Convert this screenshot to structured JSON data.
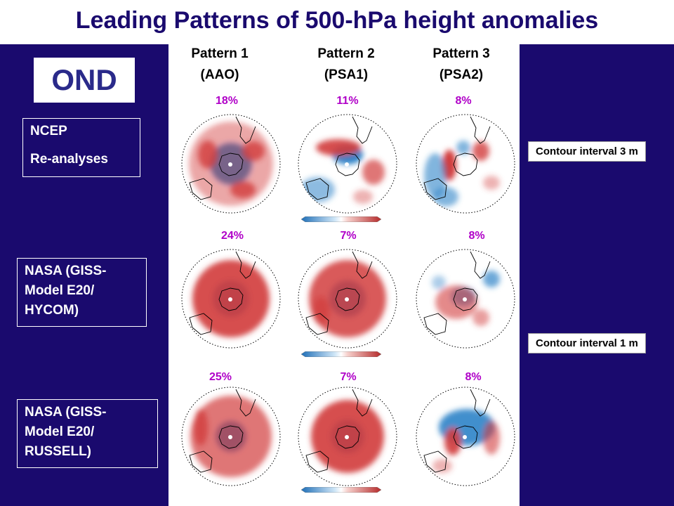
{
  "title": "Leading Patterns of 500-hPa height anomalies",
  "season": "OND",
  "columns": [
    {
      "line1": "Pattern 1",
      "line2": "(AAO)"
    },
    {
      "line1": "Pattern 2",
      "line2": "(PSA1)"
    },
    {
      "line1": "Pattern 3",
      "line2": "(PSA2)"
    }
  ],
  "rows": [
    {
      "label_lines": [
        "NCEP",
        "Re-analyses"
      ],
      "percents": [
        "18%",
        "11%",
        "8%"
      ]
    },
    {
      "label_lines": [
        "NASA (GISS-",
        "Model E20/",
        "HYCOM)"
      ],
      "percents": [
        "24%",
        "7%",
        "8%"
      ]
    },
    {
      "label_lines": [
        "NASA (GISS-",
        "Model E20/",
        "RUSSELL)"
      ],
      "percents": [
        "25%",
        "7%",
        "8%"
      ]
    }
  ],
  "contour_intervals": [
    "Contour interval 3 m",
    "Contour interval 1 m"
  ],
  "colors": {
    "background": "#1a0a6e",
    "title": "#1a0a6e",
    "percent": "#b000c8",
    "positive_anomaly": "#d23c3c",
    "negative_anomaly": "#2f83c8"
  }
}
